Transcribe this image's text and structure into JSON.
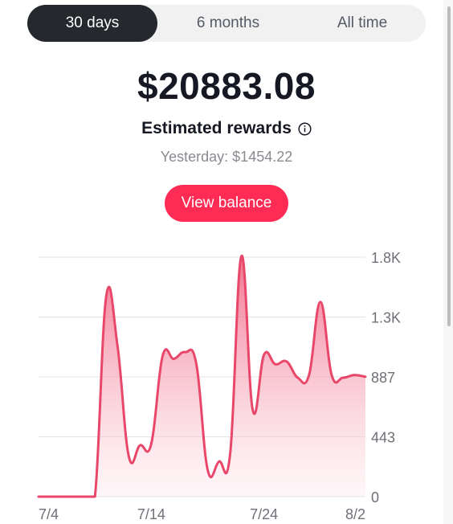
{
  "tabs": [
    {
      "label": "30 days",
      "active": true
    },
    {
      "label": "6 months",
      "active": false
    },
    {
      "label": "All time",
      "active": false
    }
  ],
  "summary": {
    "amount": "$20883.08",
    "rewards_label": "Estimated rewards",
    "yesterday_label": "Yesterday:",
    "yesterday_value": "$1454.22",
    "button_label": "View balance"
  },
  "icons": {
    "info": "info-icon"
  },
  "colors": {
    "accent": "#fe2c55",
    "line": "#e8476a",
    "active_tab": "#25282d"
  },
  "chart_data": {
    "type": "area",
    "title": "",
    "xlabel": "",
    "ylabel": "",
    "x_tick_labels": [
      "7/4",
      "7/14",
      "7/24",
      "8/2"
    ],
    "x_tick_index": [
      0,
      10,
      20,
      29
    ],
    "y_tick_labels": [
      "1.8K",
      "1.3K",
      "887",
      "443",
      "0"
    ],
    "y_tick_values": [
      1772,
      1329,
      887,
      443,
      0
    ],
    "ylim": [
      0,
      1772
    ],
    "grid": true,
    "series": [
      {
        "values": [
          0,
          0,
          0,
          0,
          0,
          0,
          1480,
          1120,
          300,
          380,
          390,
          1040,
          1020,
          1070,
          980,
          200,
          260,
          320,
          1780,
          640,
          1050,
          980,
          1000,
          880,
          900,
          1440,
          900,
          880,
          900,
          887
        ]
      }
    ]
  }
}
